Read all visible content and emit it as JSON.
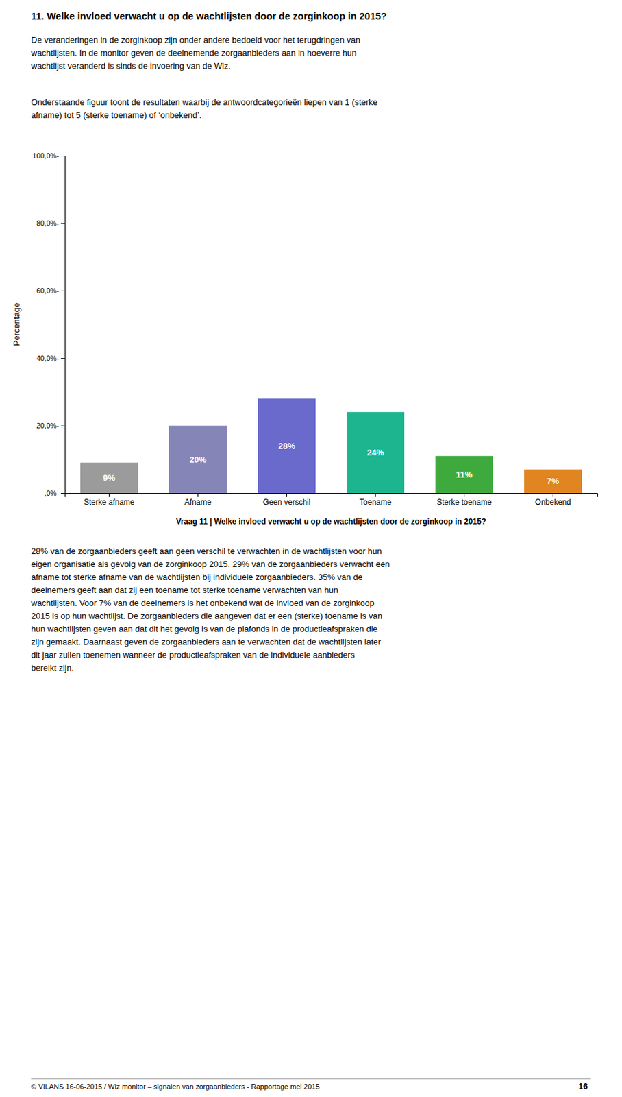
{
  "heading": "11. Welke invloed verwacht u op de wachtlijsten door de zorginkoop in 2015?",
  "text_before": [
    [
      "De veranderingen in de zorginkoop zijn onder andere bedoeld voor het terugdringen van",
      "wachtlijsten. In de monitor geven de deelnemende zorgaanbieders aan in hoeverre hun",
      "wachtlijst veranderd is sinds de invoering van de Wlz."
    ],
    [
      "Onderstaande figuur toont de resultaten waarbij de antwoordcategorieën liepen van 1 (sterke",
      "afname) tot 5 (sterke toename) of ‘onbekend’."
    ]
  ],
  "chart_data": {
    "type": "bar",
    "categories": [
      "Sterke afname",
      "Afname",
      "Geen verschil",
      "Toename",
      "Sterke toename",
      "Onbekend"
    ],
    "values": [
      9,
      20,
      28,
      24,
      11,
      7
    ],
    "value_labels": [
      "9%",
      "20%",
      "28%",
      "24%",
      "11%",
      "7%"
    ],
    "data_labels": true,
    "colors": [
      "#9b9b9b",
      "#8585b8",
      "#6a6acc",
      "#1db590",
      "#3eaa3e",
      "#e08520"
    ],
    "ylabel": "Percentage",
    "xlabel": "Vraag 11 | Welke invloed verwacht u op de wachtlijsten door de zorginkoop in 2015?",
    "ylim": [
      0,
      100
    ],
    "yticks": [
      {
        "value": 0,
        "label": ",0%-"
      },
      {
        "value": 20,
        "label": "20,0%-"
      },
      {
        "value": 40,
        "label": "40,0%-"
      },
      {
        "value": 60,
        "label": "60,0%-"
      },
      {
        "value": 80,
        "label": "80,0%-"
      },
      {
        "value": 100,
        "label": "100,0%-"
      }
    ],
    "grid": false
  },
  "text_after": [
    [
      "28% van de zorgaanbieders geeft aan geen verschil te verwachten in de wachtlijsten voor hun",
      "eigen organisatie als gevolg van de zorginkoop 2015. 29% van de zorgaanbieders verwacht een",
      "afname tot sterke afname van de wachtlijsten bij individuele zorgaanbieders. 35% van de",
      "deelnemers geeft aan dat zij een toename tot sterke toename verwachten van hun",
      "wachtlijsten. Voor 7% van de deelnemers is het onbekend wat de invloed van de zorginkoop",
      "2015 is op hun wachtlijst. De zorgaanbieders die aangeven dat er een (sterke) toename is van",
      "hun wachtlijsten geven aan dat dit het gevolg is van de plafonds in de productieafspraken die",
      "zijn gemaakt. Daarnaast geven de zorgaanbieders aan te verwachten dat de wachtlijsten later",
      "dit jaar zullen toenemen wanneer de productieafspraken van de individuele aanbieders",
      "bereikt zijn."
    ]
  ],
  "footer": "© VILANS 16-06-2015 / Wlz monitor – signalen van zorgaanbieders - Rapportage mei 2015",
  "page_number": "16"
}
